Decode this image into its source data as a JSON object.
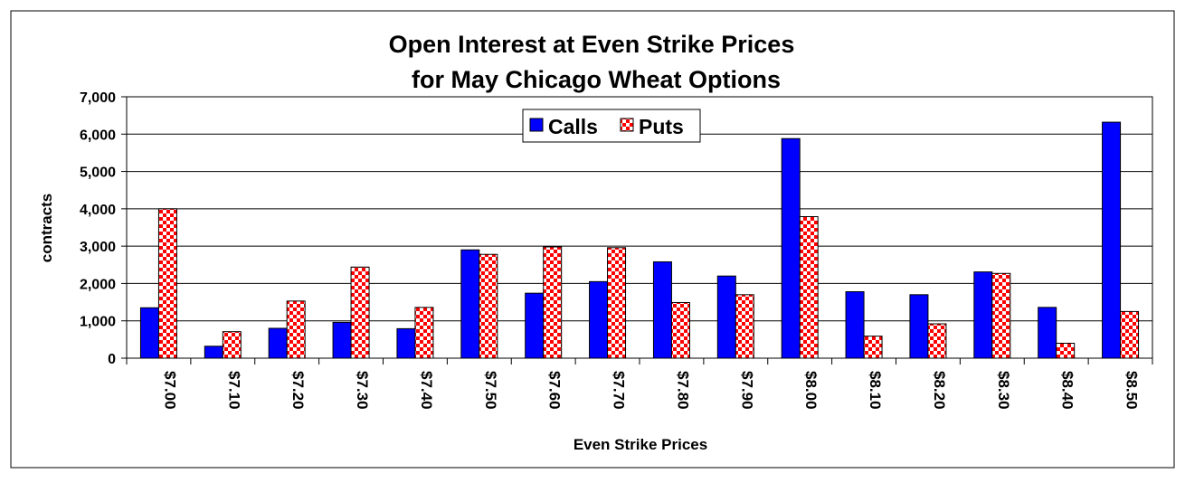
{
  "chart_data": {
    "type": "bar",
    "title": "Open Interest at Even Strike Prices",
    "subtitle": "for May Chicago Wheat Options",
    "xlabel": "Even Strike Prices",
    "ylabel": "contracts",
    "ylim": [
      0,
      7000
    ],
    "yticks": [
      "0",
      "1,000",
      "2,000",
      "3,000",
      "4,000",
      "5,000",
      "6,000",
      "7,000"
    ],
    "grid": true,
    "legend_position": "top-center",
    "categories": [
      "$7.00",
      "$7.10",
      "$7.20",
      "$7.30",
      "$7.40",
      "$7.50",
      "$7.60",
      "$7.70",
      "$7.80",
      "$7.90",
      "$8.00",
      "$8.10",
      "$8.20",
      "$8.30",
      "$8.40",
      "$8.50"
    ],
    "series": [
      {
        "name": "Calls",
        "color": "#0000ff",
        "pattern": "solid",
        "values": [
          1350,
          320,
          800,
          960,
          790,
          2900,
          1740,
          2050,
          2580,
          2200,
          5880,
          1780,
          1700,
          2310,
          1360,
          6320
        ]
      },
      {
        "name": "Puts",
        "color": "#ff0000",
        "pattern": "checkered-red-white",
        "values": [
          4000,
          710,
          1530,
          2440,
          1360,
          2780,
          2980,
          2960,
          1490,
          1700,
          3790,
          590,
          920,
          2270,
          400,
          1250
        ]
      }
    ]
  }
}
